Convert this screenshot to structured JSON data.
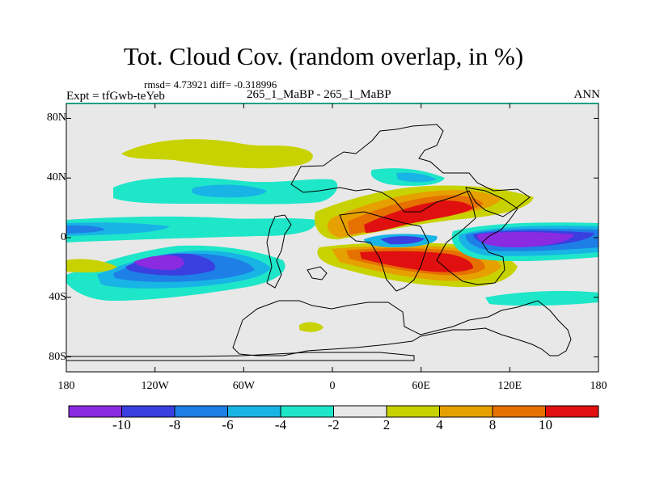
{
  "header": {
    "title": "Tot. Cloud Cov. (random overlap, in %)",
    "stats": "rmsd= 4.73921 diff= -0.318996",
    "experiment": "Expt = tfGwb-teYeb",
    "case": "265_1_MaBP - 265_1_MaBP",
    "season": "ANN"
  },
  "axes": {
    "y_ticks": [
      {
        "value": 80,
        "label": "80N"
      },
      {
        "value": 40,
        "label": "40N"
      },
      {
        "value": 0,
        "label": "0"
      },
      {
        "value": -40,
        "label": "40S"
      },
      {
        "value": -80,
        "label": "80S"
      }
    ],
    "x_ticks": [
      {
        "value": -180,
        "label": "180"
      },
      {
        "value": -120,
        "label": "120W"
      },
      {
        "value": -60,
        "label": "60W"
      },
      {
        "value": 0,
        "label": "0"
      },
      {
        "value": 60,
        "label": "60E"
      },
      {
        "value": 120,
        "label": "120E"
      },
      {
        "value": 180,
        "label": "180"
      }
    ],
    "xlim": [
      -180,
      180
    ],
    "ylim": [
      -90,
      90
    ]
  },
  "colorbar": {
    "colors": [
      "#8a2be2",
      "#3a3fe0",
      "#1e7fe6",
      "#18b4e6",
      "#1ee6c8",
      "#e8e8e8",
      "#c8d200",
      "#e6a000",
      "#e67000",
      "#e01010"
    ],
    "labels": [
      {
        "boundary": 1,
        "label": "-10"
      },
      {
        "boundary": 2,
        "label": "-8"
      },
      {
        "boundary": 3,
        "label": "-6"
      },
      {
        "boundary": 4,
        "label": "-4"
      },
      {
        "boundary": 5,
        "label": "-2"
      },
      {
        "boundary": 6,
        "label": "2"
      },
      {
        "boundary": 7,
        "label": "4"
      },
      {
        "boundary": 8,
        "label": "8"
      },
      {
        "boundary": 9,
        "label": "10"
      }
    ]
  },
  "chart_data": {
    "type": "heatmap",
    "xlim": [
      -180,
      180
    ],
    "ylim": [
      -90,
      90
    ],
    "levels": [
      -10,
      -8,
      -6,
      -4,
      -2,
      2,
      4,
      8,
      10
    ],
    "background_level": "-2 to 2",
    "features": [
      {
        "name": "tropical-east-positive-north",
        "lon": [
          18,
          100
        ],
        "lat": [
          0,
          30
        ],
        "max_level": "10"
      },
      {
        "name": "tropical-east-positive-south",
        "lon": [
          15,
          115
        ],
        "lat": [
          -33,
          -2
        ],
        "max_level": "10"
      },
      {
        "name": "eastern-negative-core",
        "lon": [
          90,
          160
        ],
        "lat": [
          -15,
          5
        ],
        "min_level": "-10"
      },
      {
        "name": "southern-pacific-negative",
        "lon": [
          -150,
          -95
        ],
        "lat": [
          -30,
          -10
        ],
        "min_level": "-10"
      },
      {
        "name": "northern-midlat-positive",
        "lon": [
          -140,
          -20
        ],
        "lat": [
          40,
          60
        ],
        "max_level": "4"
      }
    ]
  }
}
